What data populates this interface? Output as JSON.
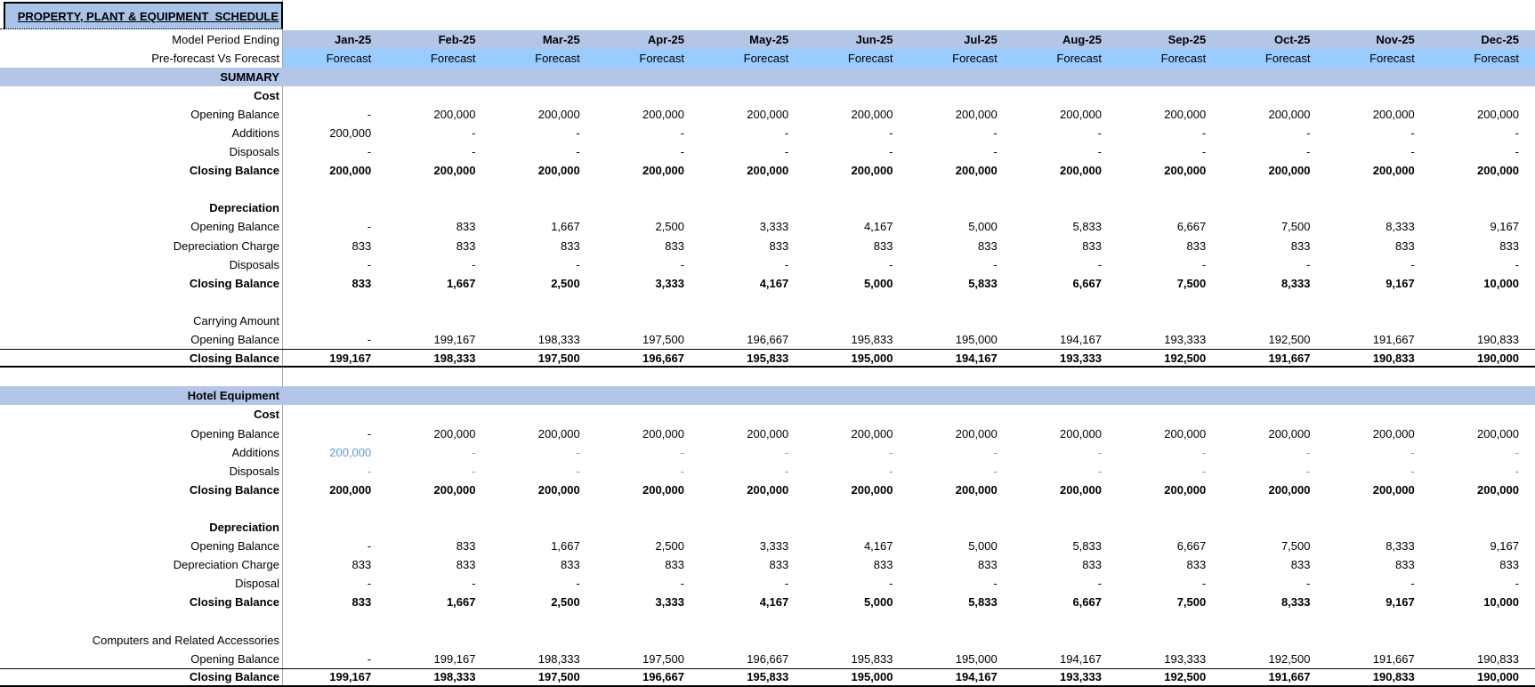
{
  "title": "PROPERTY, PLANT & EQUIPMENT  SCHEDULE",
  "colors": {
    "band_periwinkle": "#B4C6E7",
    "title_background": "#A9C4E9",
    "forecast_band": "#99CCFF",
    "input_text_blue": "#5B9BD5",
    "text_black": "#000000"
  },
  "rows": [
    {
      "kind": "header-months",
      "name": "header-model-period-ending",
      "label": "Model Period Ending",
      "values": [
        "Jan-25",
        "Feb-25",
        "Mar-25",
        "Apr-25",
        "May-25",
        "Jun-25",
        "Jul-25",
        "Aug-25",
        "Sep-25",
        "Oct-25",
        "Nov-25",
        "Dec-25"
      ],
      "valuesBold": true
    },
    {
      "kind": "header-forecast",
      "name": "header-preforecast-vs-forecast",
      "label": "Pre-forecast Vs Forecast",
      "values": [
        "Forecast",
        "Forecast",
        "Forecast",
        "Forecast",
        "Forecast",
        "Forecast",
        "Forecast",
        "Forecast",
        "Forecast",
        "Forecast",
        "Forecast",
        "Forecast"
      ]
    },
    {
      "kind": "band",
      "name": "section-band-summary",
      "label": "SUMMARY",
      "labelBold": true
    },
    {
      "kind": "label",
      "name": "summary-cost-heading",
      "label": "Cost",
      "labelBold": true
    },
    {
      "kind": "data",
      "name": "summary-cost-opening-balance",
      "label": "Opening Balance",
      "values": [
        "-",
        "200,000",
        "200,000",
        "200,000",
        "200,000",
        "200,000",
        "200,000",
        "200,000",
        "200,000",
        "200,000",
        "200,000",
        "200,000"
      ]
    },
    {
      "kind": "data",
      "name": "summary-cost-additions",
      "label": "Additions",
      "values": [
        "200,000",
        "-",
        "-",
        "-",
        "-",
        "-",
        "-",
        "-",
        "-",
        "-",
        "-",
        "-"
      ]
    },
    {
      "kind": "data",
      "name": "summary-cost-disposals",
      "label": "Disposals",
      "values": [
        "-",
        "-",
        "-",
        "-",
        "-",
        "-",
        "-",
        "-",
        "-",
        "-",
        "-",
        "-"
      ]
    },
    {
      "kind": "data",
      "name": "summary-cost-closing-balance",
      "label": "Closing Balance",
      "labelBold": true,
      "valuesBold": true,
      "values": [
        "200,000",
        "200,000",
        "200,000",
        "200,000",
        "200,000",
        "200,000",
        "200,000",
        "200,000",
        "200,000",
        "200,000",
        "200,000",
        "200,000"
      ]
    },
    {
      "kind": "blank",
      "name": "spacer-row"
    },
    {
      "kind": "label",
      "name": "summary-depreciation-heading",
      "label": "Depreciation",
      "labelBold": true
    },
    {
      "kind": "data",
      "name": "summary-depreciation-opening-balance",
      "label": "Opening Balance",
      "values": [
        "-",
        "833",
        "1,667",
        "2,500",
        "3,333",
        "4,167",
        "5,000",
        "5,833",
        "6,667",
        "7,500",
        "8,333",
        "9,167"
      ]
    },
    {
      "kind": "data",
      "name": "summary-depreciation-charge",
      "label": "Depreciation Charge",
      "values": [
        "833",
        "833",
        "833",
        "833",
        "833",
        "833",
        "833",
        "833",
        "833",
        "833",
        "833",
        "833"
      ]
    },
    {
      "kind": "data",
      "name": "summary-depreciation-disposals",
      "label": "Disposals",
      "values": [
        "-",
        "-",
        "-",
        "-",
        "-",
        "-",
        "-",
        "-",
        "-",
        "-",
        "-",
        "-"
      ]
    },
    {
      "kind": "data",
      "name": "summary-depreciation-closing-balance",
      "label": "Closing Balance",
      "labelBold": true,
      "valuesBold": true,
      "values": [
        "833",
        "1,667",
        "2,500",
        "3,333",
        "4,167",
        "5,000",
        "5,833",
        "6,667",
        "7,500",
        "8,333",
        "9,167",
        "10,000"
      ]
    },
    {
      "kind": "blank",
      "name": "spacer-row"
    },
    {
      "kind": "label",
      "name": "summary-carrying-amount-heading",
      "label": "Carrying Amount"
    },
    {
      "kind": "data",
      "name": "summary-carrying-opening-balance",
      "label": "Opening Balance",
      "values": [
        "-",
        "199,167",
        "198,333",
        "197,500",
        "196,667",
        "195,833",
        "195,000",
        "194,167",
        "193,333",
        "192,500",
        "191,667",
        "190,833"
      ]
    },
    {
      "kind": "data",
      "name": "summary-carrying-closing-balance",
      "label": "Closing Balance",
      "labelBold": true,
      "valuesBold": true,
      "bordered": true,
      "values": [
        "199,167",
        "198,333",
        "197,500",
        "196,667",
        "195,833",
        "195,000",
        "194,167",
        "193,333",
        "192,500",
        "191,667",
        "190,833",
        "190,000"
      ]
    },
    {
      "kind": "blank",
      "name": "spacer-row"
    },
    {
      "kind": "band",
      "name": "section-band-hotel-equipment",
      "label": "Hotel Equipment",
      "labelBold": true
    },
    {
      "kind": "label",
      "name": "hotel-cost-heading",
      "label": "Cost",
      "labelBold": true
    },
    {
      "kind": "data",
      "name": "hotel-cost-opening-balance",
      "label": "Opening Balance",
      "values": [
        "-",
        "200,000",
        "200,000",
        "200,000",
        "200,000",
        "200,000",
        "200,000",
        "200,000",
        "200,000",
        "200,000",
        "200,000",
        "200,000"
      ]
    },
    {
      "kind": "data",
      "name": "hotel-cost-additions",
      "label": "Additions",
      "blue": true,
      "values": [
        "200,000",
        "-",
        "-",
        "-",
        "-",
        "-",
        "-",
        "-",
        "-",
        "-",
        "-",
        "-"
      ]
    },
    {
      "kind": "data",
      "name": "hotel-cost-disposals",
      "label": "Disposals",
      "blue": true,
      "values": [
        "-",
        "-",
        "-",
        "-",
        "-",
        "-",
        "-",
        "-",
        "-",
        "-",
        "-",
        "-"
      ]
    },
    {
      "kind": "data",
      "name": "hotel-cost-closing-balance",
      "label": "Closing Balance",
      "labelBold": true,
      "valuesBold": true,
      "values": [
        "200,000",
        "200,000",
        "200,000",
        "200,000",
        "200,000",
        "200,000",
        "200,000",
        "200,000",
        "200,000",
        "200,000",
        "200,000",
        "200,000"
      ]
    },
    {
      "kind": "blank",
      "name": "spacer-row"
    },
    {
      "kind": "label",
      "name": "hotel-depreciation-heading",
      "label": "Depreciation",
      "labelBold": true
    },
    {
      "kind": "data",
      "name": "hotel-depreciation-opening-balance",
      "label": "Opening Balance",
      "values": [
        "-",
        "833",
        "1,667",
        "2,500",
        "3,333",
        "4,167",
        "5,000",
        "5,833",
        "6,667",
        "7,500",
        "8,333",
        "9,167"
      ]
    },
    {
      "kind": "data",
      "name": "hotel-depreciation-charge",
      "label": "Depreciation Charge",
      "values": [
        "833",
        "833",
        "833",
        "833",
        "833",
        "833",
        "833",
        "833",
        "833",
        "833",
        "833",
        "833"
      ]
    },
    {
      "kind": "data",
      "name": "hotel-depreciation-disposal",
      "label": "Disposal",
      "values": [
        "-",
        "-",
        "-",
        "-",
        "-",
        "-",
        "-",
        "-",
        "-",
        "-",
        "-",
        "-"
      ]
    },
    {
      "kind": "data",
      "name": "hotel-depreciation-closing-balance",
      "label": "Closing Balance",
      "labelBold": true,
      "valuesBold": true,
      "values": [
        "833",
        "1,667",
        "2,500",
        "3,333",
        "4,167",
        "5,000",
        "5,833",
        "6,667",
        "7,500",
        "8,333",
        "9,167",
        "10,000"
      ]
    },
    {
      "kind": "blank",
      "name": "spacer-row"
    },
    {
      "kind": "label",
      "name": "computers-accessories-heading",
      "label": "Computers and Related Accessories"
    },
    {
      "kind": "data",
      "name": "computers-opening-balance",
      "label": "Opening Balance",
      "values": [
        "-",
        "199,167",
        "198,333",
        "197,500",
        "196,667",
        "195,833",
        "195,000",
        "194,167",
        "193,333",
        "192,500",
        "191,667",
        "190,833"
      ]
    },
    {
      "kind": "data",
      "name": "computers-closing-balance",
      "label": "Closing Balance",
      "labelBold": true,
      "valuesBold": true,
      "bordered": true,
      "values": [
        "199,167",
        "198,333",
        "197,500",
        "196,667",
        "195,833",
        "195,000",
        "194,167",
        "193,333",
        "192,500",
        "191,667",
        "190,833",
        "190,000"
      ]
    }
  ]
}
